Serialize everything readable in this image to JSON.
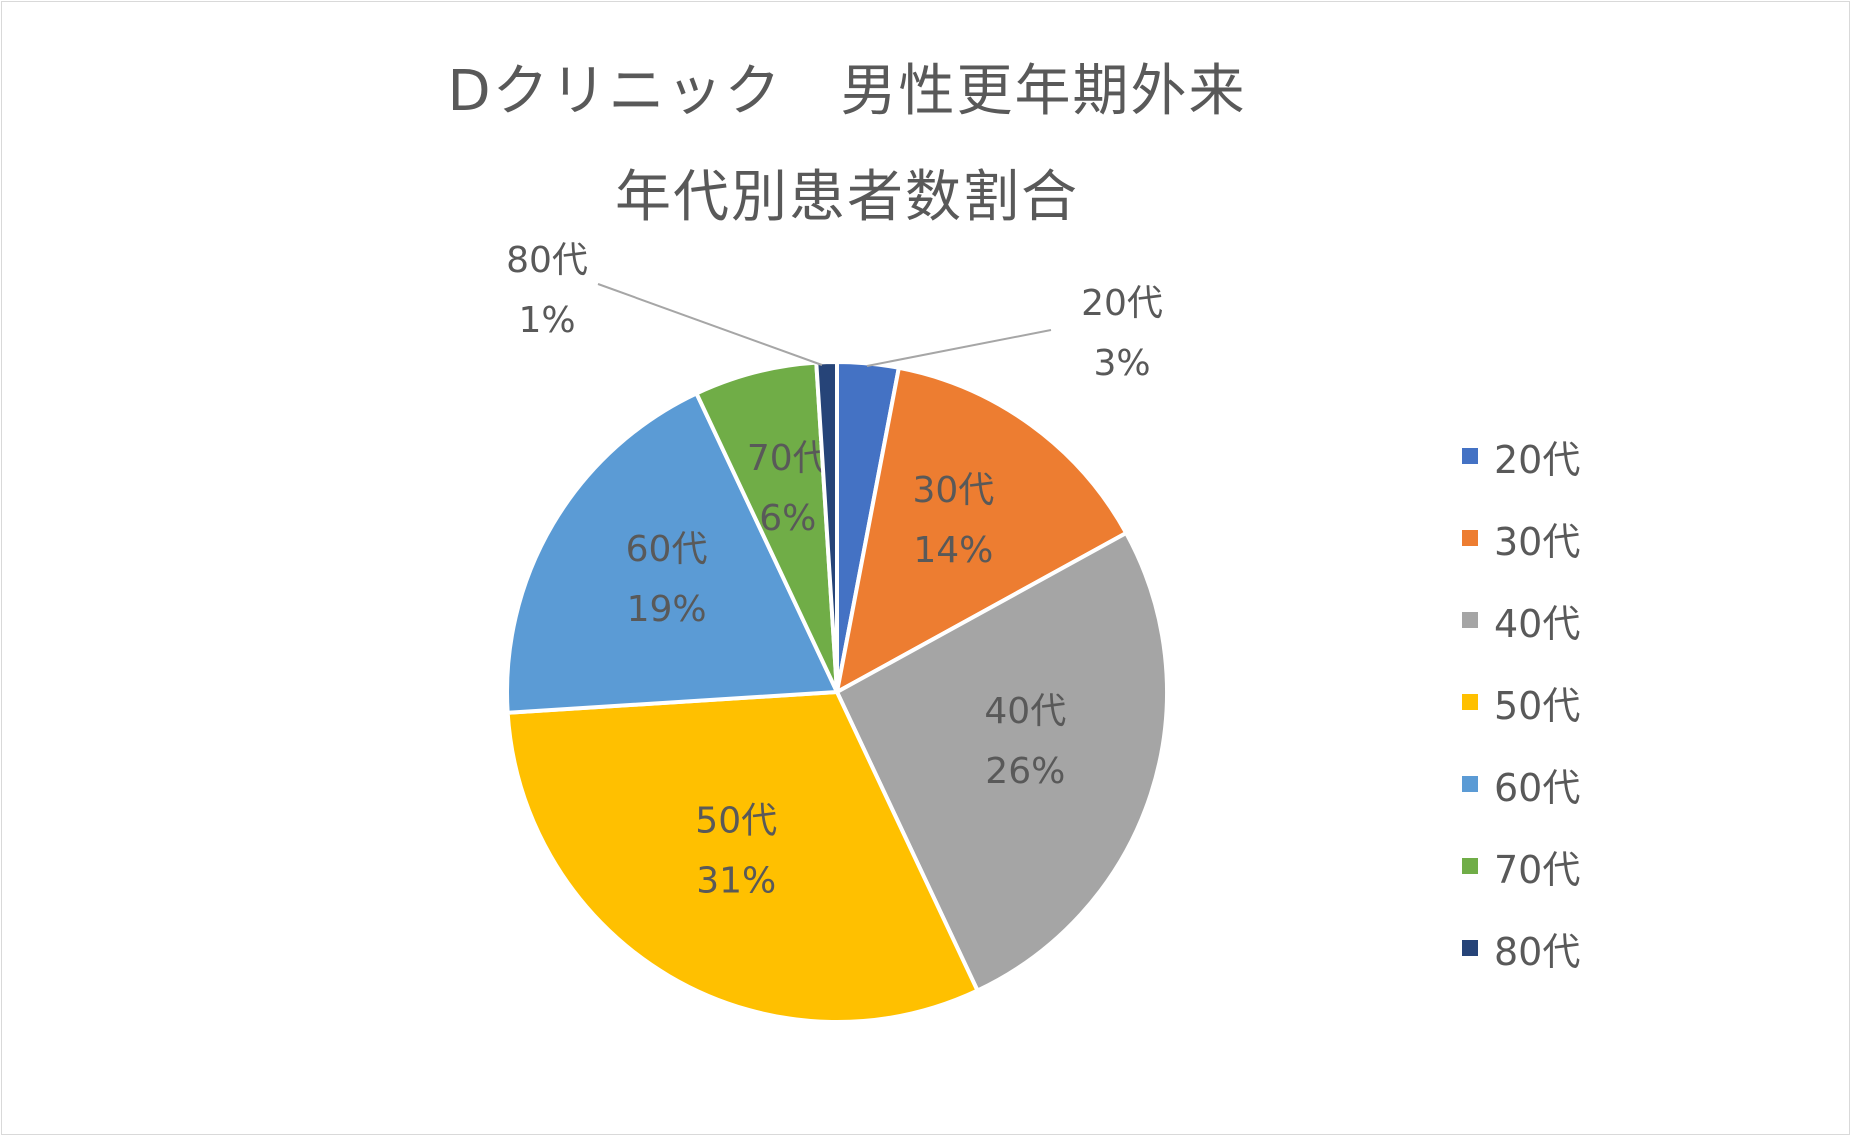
{
  "chart_data": {
    "type": "pie",
    "title": [
      "Dクリニック　男性更年期外来",
      "年代別患者数割合"
    ],
    "categories": [
      "20代",
      "30代",
      "40代",
      "50代",
      "60代",
      "70代",
      "80代"
    ],
    "values": [
      3,
      14,
      26,
      31,
      19,
      6,
      1
    ],
    "value_labels": [
      "3%",
      "14%",
      "26%",
      "31%",
      "19%",
      "6%",
      "1%"
    ],
    "colors": [
      "#4472c4",
      "#ed7d31",
      "#a5a5a5",
      "#ffc000",
      "#5b9bd5",
      "#70ad47",
      "#264478"
    ],
    "label_color": "#595959",
    "legend_position": "right"
  }
}
